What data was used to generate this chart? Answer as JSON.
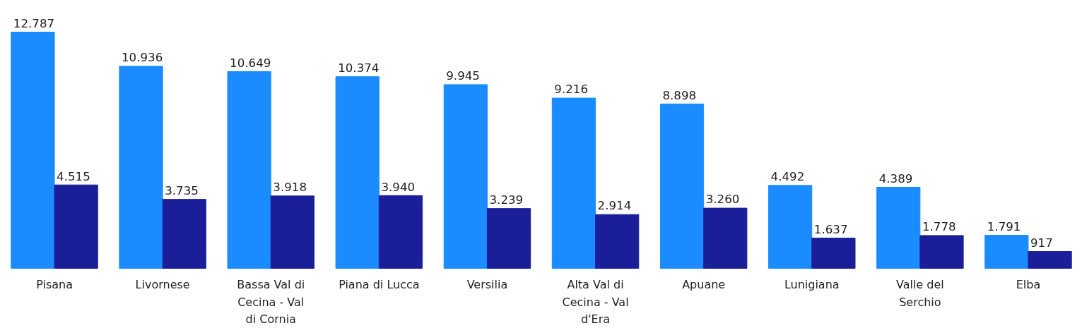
{
  "chart_data": {
    "type": "bar",
    "categories": [
      "Pisana",
      "Livornese",
      "Bassa Val di Cecina - Val di Cornia",
      "Piana di Lucca",
      "Versilia",
      "Alta Val di Cecina - Val d'Era",
      "Apuane",
      "Lunigiana",
      "Valle del Serchio",
      "Elba"
    ],
    "series": [
      {
        "color": "#1a8cff",
        "values": [
          12787,
          10936,
          10649,
          10374,
          9945,
          9216,
          8898,
          4492,
          4389,
          1791
        ],
        "value_labels": [
          "12.787",
          "10.936",
          "10.649",
          "10.374",
          "9.945",
          "9.216",
          "8.898",
          "4.492",
          "4.389",
          "1.791"
        ]
      },
      {
        "color": "#1a1f99",
        "values": [
          4515,
          3735,
          3918,
          3940,
          3239,
          2914,
          3260,
          1637,
          1778,
          917
        ],
        "value_labels": [
          "4.515",
          "3.735",
          "3.918",
          "3.940",
          "3.239",
          "2.914",
          "3.260",
          "1.637",
          "1.778",
          "917"
        ]
      }
    ],
    "grid": false
  }
}
